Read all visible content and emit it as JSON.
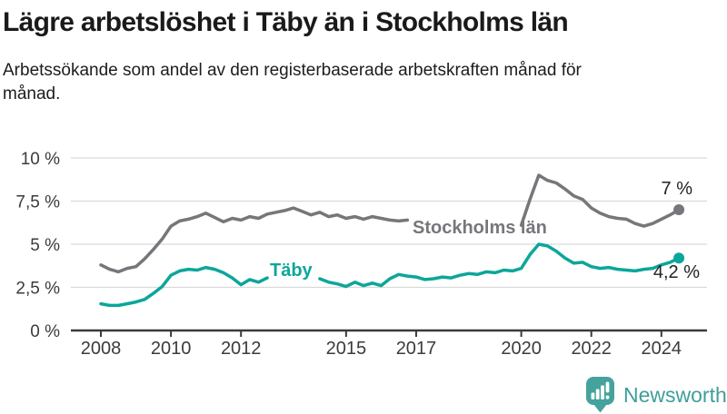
{
  "header": {
    "title": "Lägre arbetslöshet i Täby än i Stockholms län",
    "subtitle": "Arbetssökande som andel av den registerbaserade arbetskraften månad för månad."
  },
  "footer": {
    "brand": "Newsworthy"
  },
  "colors": {
    "taby": "#0ca69a",
    "stockholm": "#76767b",
    "grid": "#d9d9d9",
    "axis": "#3b3b3b",
    "text": "#1a1a1a",
    "logo": "#46a29c"
  },
  "chart_data": {
    "type": "line",
    "title": "Lägre arbetslöshet i Täby än i Stockholms län",
    "subtitle": "Arbetssökande som andel av den registerbaserade arbetskraften månad för månad.",
    "xlabel": "",
    "ylabel": "",
    "xlim": [
      2008,
      2024.5
    ],
    "ylim": [
      0,
      10
    ],
    "grid": "horizontal",
    "legend_position": "inline-labels",
    "y_ticks": [
      {
        "value": 0,
        "label": "0 %"
      },
      {
        "value": 2.5,
        "label": "2,5 %"
      },
      {
        "value": 5,
        "label": "5 %"
      },
      {
        "value": 7.5,
        "label": "7,5 %"
      },
      {
        "value": 10,
        "label": "10 %"
      }
    ],
    "x_ticks": [
      {
        "value": 2008,
        "label": "2008"
      },
      {
        "value": 2010,
        "label": "2010"
      },
      {
        "value": 2012,
        "label": "2012"
      },
      {
        "value": 2015,
        "label": "2015"
      },
      {
        "value": 2017,
        "label": "2017"
      },
      {
        "value": 2020,
        "label": "2020"
      },
      {
        "value": 2022,
        "label": "2022"
      },
      {
        "value": 2024,
        "label": "2024"
      }
    ],
    "x_start": 2008,
    "x_step": 0.25,
    "series": [
      {
        "name": "Stockholms län",
        "label": "Stockholms län",
        "end_label": "7 %",
        "end_value": 7.0,
        "color": "#76767b",
        "label_gap": [
          2016.8,
          2019.95
        ],
        "values": [
          3.8,
          3.55,
          3.4,
          3.6,
          3.7,
          4.15,
          4.7,
          5.3,
          6.05,
          6.35,
          6.45,
          6.6,
          6.8,
          6.55,
          6.3,
          6.5,
          6.4,
          6.6,
          6.5,
          6.75,
          6.85,
          6.95,
          7.1,
          6.9,
          6.7,
          6.85,
          6.6,
          6.7,
          6.5,
          6.6,
          6.45,
          6.6,
          6.5,
          6.4,
          6.35,
          6.4,
          6.25,
          6.3,
          6.1,
          6.2,
          6.05,
          6.1,
          6.0,
          6.1,
          6.0,
          6.1,
          6.05,
          6.15,
          6.1,
          7.6,
          9.0,
          8.7,
          8.55,
          8.2,
          7.8,
          7.6,
          7.1,
          6.8,
          6.6,
          6.5,
          6.45,
          6.2,
          6.05,
          6.2,
          6.45,
          6.7,
          7.0
        ]
      },
      {
        "name": "Täby",
        "label": "Täby",
        "end_label": "4,2 %",
        "end_value": 4.2,
        "color": "#0ca69a",
        "label_gap": [
          2012.9,
          2014.1
        ],
        "values": [
          1.55,
          1.45,
          1.45,
          1.55,
          1.65,
          1.8,
          2.15,
          2.55,
          3.2,
          3.45,
          3.55,
          3.5,
          3.65,
          3.55,
          3.35,
          3.05,
          2.65,
          2.95,
          2.8,
          3.05,
          3.1,
          3.0,
          3.2,
          3.1,
          2.9,
          3.0,
          2.8,
          2.7,
          2.55,
          2.8,
          2.6,
          2.75,
          2.6,
          3.0,
          3.25,
          3.15,
          3.1,
          2.95,
          3.0,
          3.1,
          3.05,
          3.2,
          3.3,
          3.25,
          3.4,
          3.35,
          3.5,
          3.45,
          3.6,
          4.4,
          5.0,
          4.9,
          4.6,
          4.2,
          3.9,
          3.95,
          3.7,
          3.6,
          3.65,
          3.55,
          3.5,
          3.45,
          3.55,
          3.6,
          3.8,
          3.95,
          4.2
        ]
      }
    ]
  }
}
